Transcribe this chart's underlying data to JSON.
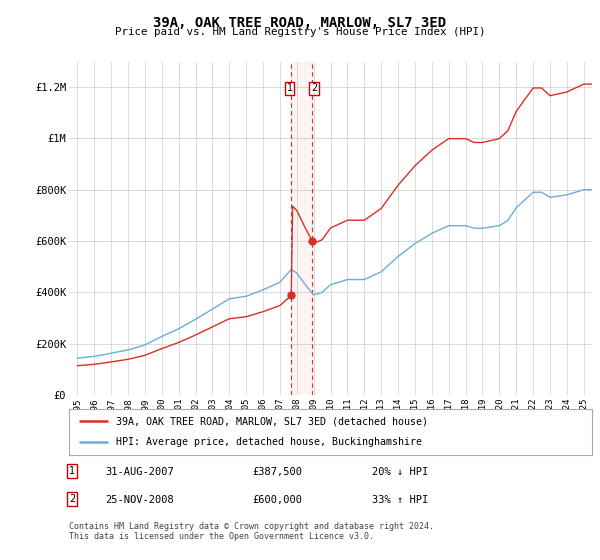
{
  "title": "39A, OAK TREE ROAD, MARLOW, SL7 3ED",
  "subtitle": "Price paid vs. HM Land Registry's House Price Index (HPI)",
  "hpi_color": "#6baed6",
  "sale_color": "#d73027",
  "property_line_color": "#d73027",
  "vline_color": "#d73027",
  "ylim": [
    0,
    1300000
  ],
  "yticks": [
    0,
    200000,
    400000,
    600000,
    800000,
    1000000,
    1200000
  ],
  "ytick_labels": [
    "£0",
    "£200K",
    "£400K",
    "£600K",
    "£800K",
    "£1M",
    "£1.2M"
  ],
  "vline_x1": 2007.67,
  "vline_x2": 2008.92,
  "sale_dates": [
    2007.67,
    2008.92
  ],
  "sale_prices": [
    387500,
    600000
  ],
  "annotation1": {
    "num": "1",
    "date": "31-AUG-2007",
    "price": "£387,500",
    "hpi_change": "20% ↓ HPI"
  },
  "annotation2": {
    "num": "2",
    "date": "25-NOV-2008",
    "price": "£600,000",
    "hpi_change": "33% ↑ HPI"
  },
  "legend_label1": "39A, OAK TREE ROAD, MARLOW, SL7 3ED (detached house)",
  "legend_label2": "HPI: Average price, detached house, Buckinghamshire",
  "footer": "Contains HM Land Registry data © Crown copyright and database right 2024.\nThis data is licensed under the Open Government Licence v3.0.",
  "xlim": [
    1994.5,
    2025.5
  ],
  "xtick_years": [
    1995,
    1996,
    1997,
    1998,
    1999,
    2000,
    2001,
    2002,
    2003,
    2004,
    2005,
    2006,
    2007,
    2008,
    2009,
    2010,
    2011,
    2012,
    2013,
    2014,
    2015,
    2016,
    2017,
    2018,
    2019,
    2020,
    2021,
    2022,
    2023,
    2024,
    2025
  ],
  "bg_color": "#ffffff",
  "grid_color": "#cccccc"
}
